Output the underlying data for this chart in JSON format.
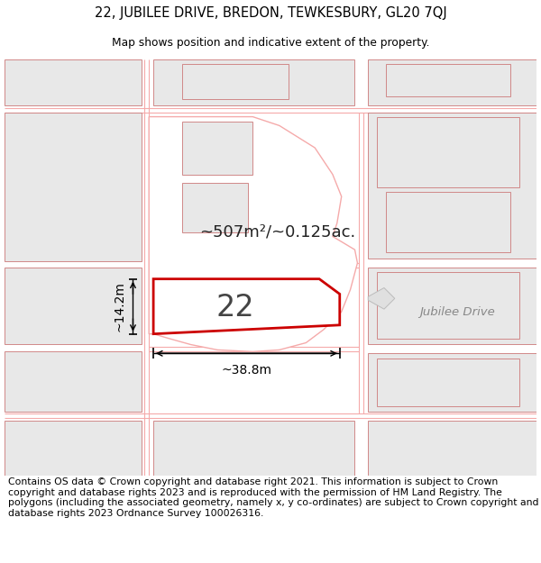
{
  "title_line1": "22, JUBILEE DRIVE, BREDON, TEWKESBURY, GL20 7QJ",
  "title_line2": "Map shows position and indicative extent of the property.",
  "footer_text": "Contains OS data © Crown copyright and database right 2021. This information is subject to Crown copyright and database rights 2023 and is reproduced with the permission of HM Land Registry. The polygons (including the associated geometry, namely x, y co-ordinates) are subject to Crown copyright and database rights 2023 Ordnance Survey 100026316.",
  "bg_color": "#ffffff",
  "road_color": "#f5aaaa",
  "highlight_color": "#cc0000",
  "building_fill": "#e8e8e8",
  "building_edge": "#d08888",
  "area_text": "~507m²/~0.125ac.",
  "property_label": "22",
  "width_label": "~38.8m",
  "height_label": "~14.2m",
  "street_label": "Jubilee Drive",
  "title_fontsize": 10.5,
  "footer_fontsize": 7.8
}
